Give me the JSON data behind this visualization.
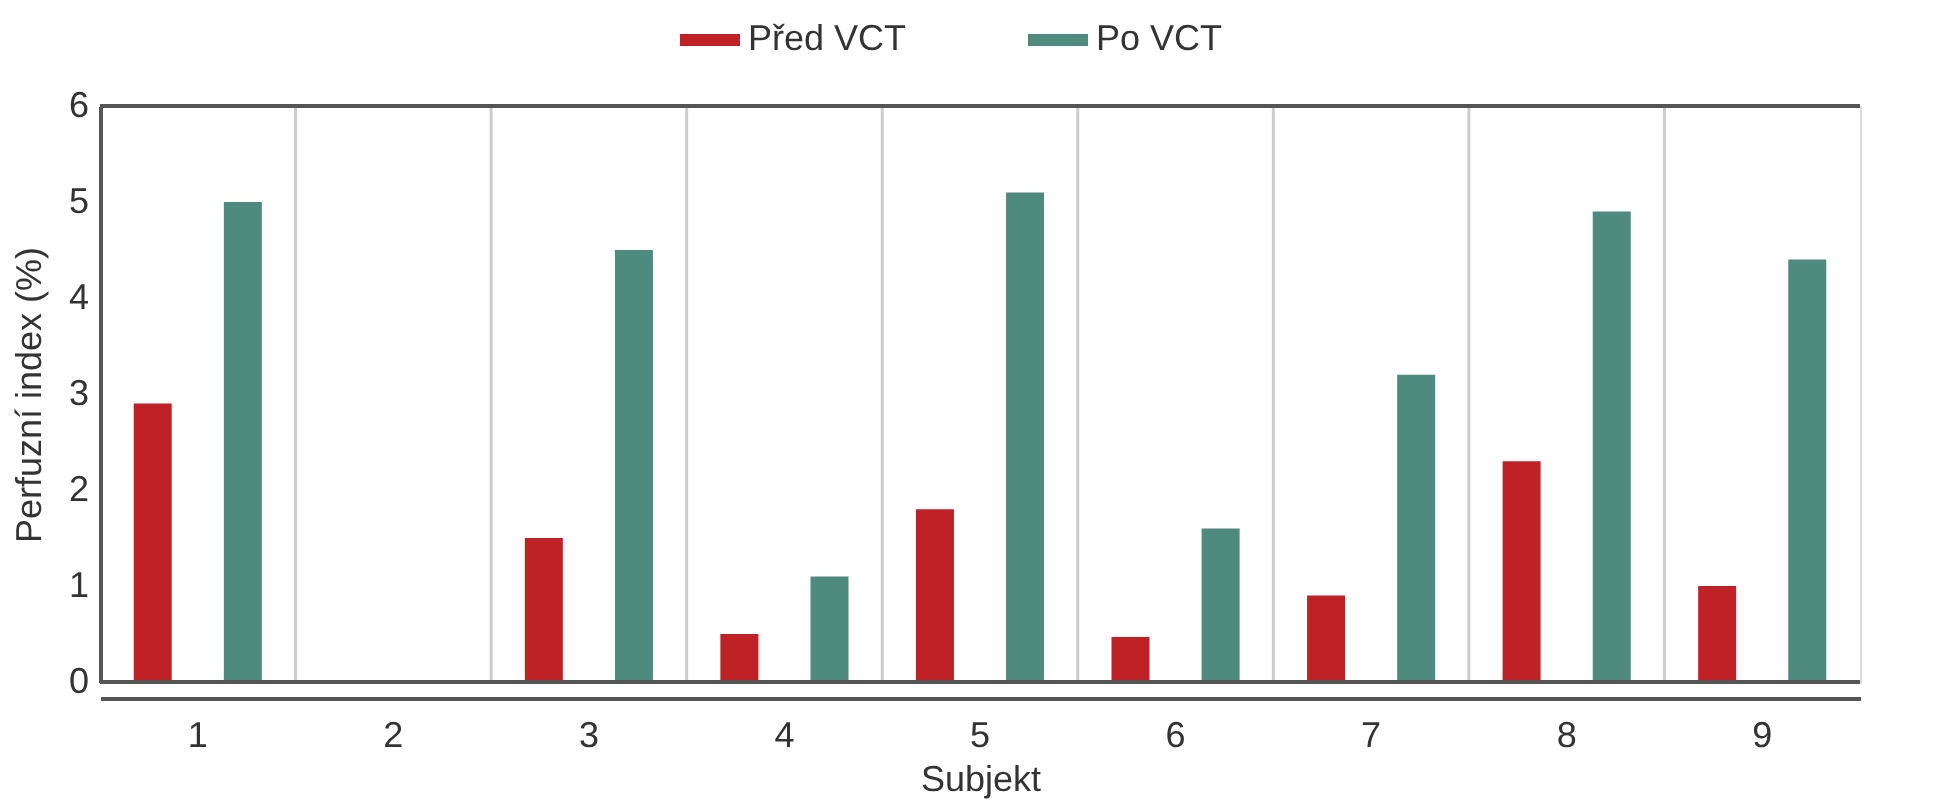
{
  "chart_data": {
    "type": "bar",
    "xlabel": "Subjekt",
    "ylabel": "Perfuzní index (%)",
    "categories": [
      "1",
      "2",
      "3",
      "4",
      "5",
      "6",
      "7",
      "8",
      "9"
    ],
    "series": [
      {
        "name": "Před VCT",
        "color": "#be2126",
        "values": [
          2.9,
          null,
          1.5,
          0.5,
          1.8,
          0.47,
          0.9,
          2.3,
          1.0
        ]
      },
      {
        "name": "Po VCT",
        "color": "#4e8a7d",
        "values": [
          5.0,
          null,
          4.5,
          1.1,
          5.1,
          1.6,
          3.2,
          4.9,
          4.4
        ]
      }
    ],
    "ylim": [
      0,
      6
    ],
    "yticks": [
      0,
      1,
      2,
      3,
      4,
      5,
      6
    ],
    "grid": "x",
    "legend": "top"
  }
}
